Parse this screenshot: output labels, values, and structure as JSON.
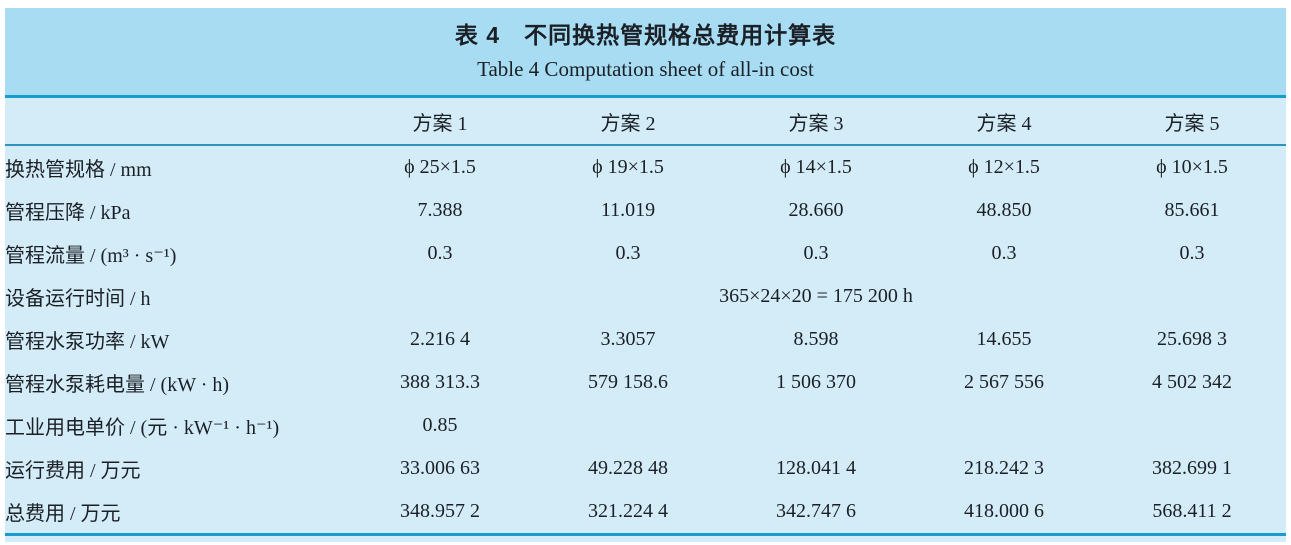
{
  "colors": {
    "title_band_bg": "#a7dcf2",
    "body_bg": "#d3ecf8",
    "rule_heavy": "#189ccd",
    "rule_light": "#2e93be",
    "text": "#1b2026",
    "page_margin": "#ffffff"
  },
  "table": {
    "title_zh": "表 4　不同换热管规格总费用计算表",
    "title_en": "Table 4  Computation sheet of all-in cost",
    "corner_label": "",
    "columns": [
      "方案 1",
      "方案 2",
      "方案 3",
      "方案 4",
      "方案 5"
    ],
    "rows": [
      {
        "label": "换热管规格 / mm",
        "values": [
          "ϕ 25×1.5",
          "ϕ 19×1.5",
          "ϕ 14×1.5",
          "ϕ 12×1.5",
          "ϕ 10×1.5"
        ]
      },
      {
        "label": "管程压降 / kPa",
        "values": [
          "7.388",
          "11.019",
          "28.660",
          "48.850",
          "85.661"
        ]
      },
      {
        "label": "管程流量 / (m³ · s⁻¹)",
        "values": [
          "0.3",
          "0.3",
          "0.3",
          "0.3",
          "0.3"
        ]
      },
      {
        "label": "设备运行时间 / h",
        "span_value": "365×24×20 = 175 200 h"
      },
      {
        "label": "管程水泵功率 / kW",
        "values": [
          "2.216 4",
          "3.3057",
          "8.598",
          "14.655",
          "25.698 3"
        ]
      },
      {
        "label": "管程水泵耗电量 / (kW · h)",
        "values": [
          "388 313.3",
          "579 158.6",
          "1 506 370",
          "2 567 556",
          "4 502 342"
        ]
      },
      {
        "label": "工业用电单价 / (元 · kW⁻¹ · h⁻¹)",
        "values": [
          "0.85",
          "",
          "",
          "",
          ""
        ]
      },
      {
        "label": "运行费用 / 万元",
        "values": [
          "33.006 63",
          "49.228 48",
          "128.041 4",
          "218.242 3",
          "382.699 1"
        ]
      },
      {
        "label": "总费用 / 万元",
        "values": [
          "348.957 2",
          "321.224 4",
          "342.747 6",
          "418.000 6",
          "568.411 2"
        ]
      }
    ]
  }
}
